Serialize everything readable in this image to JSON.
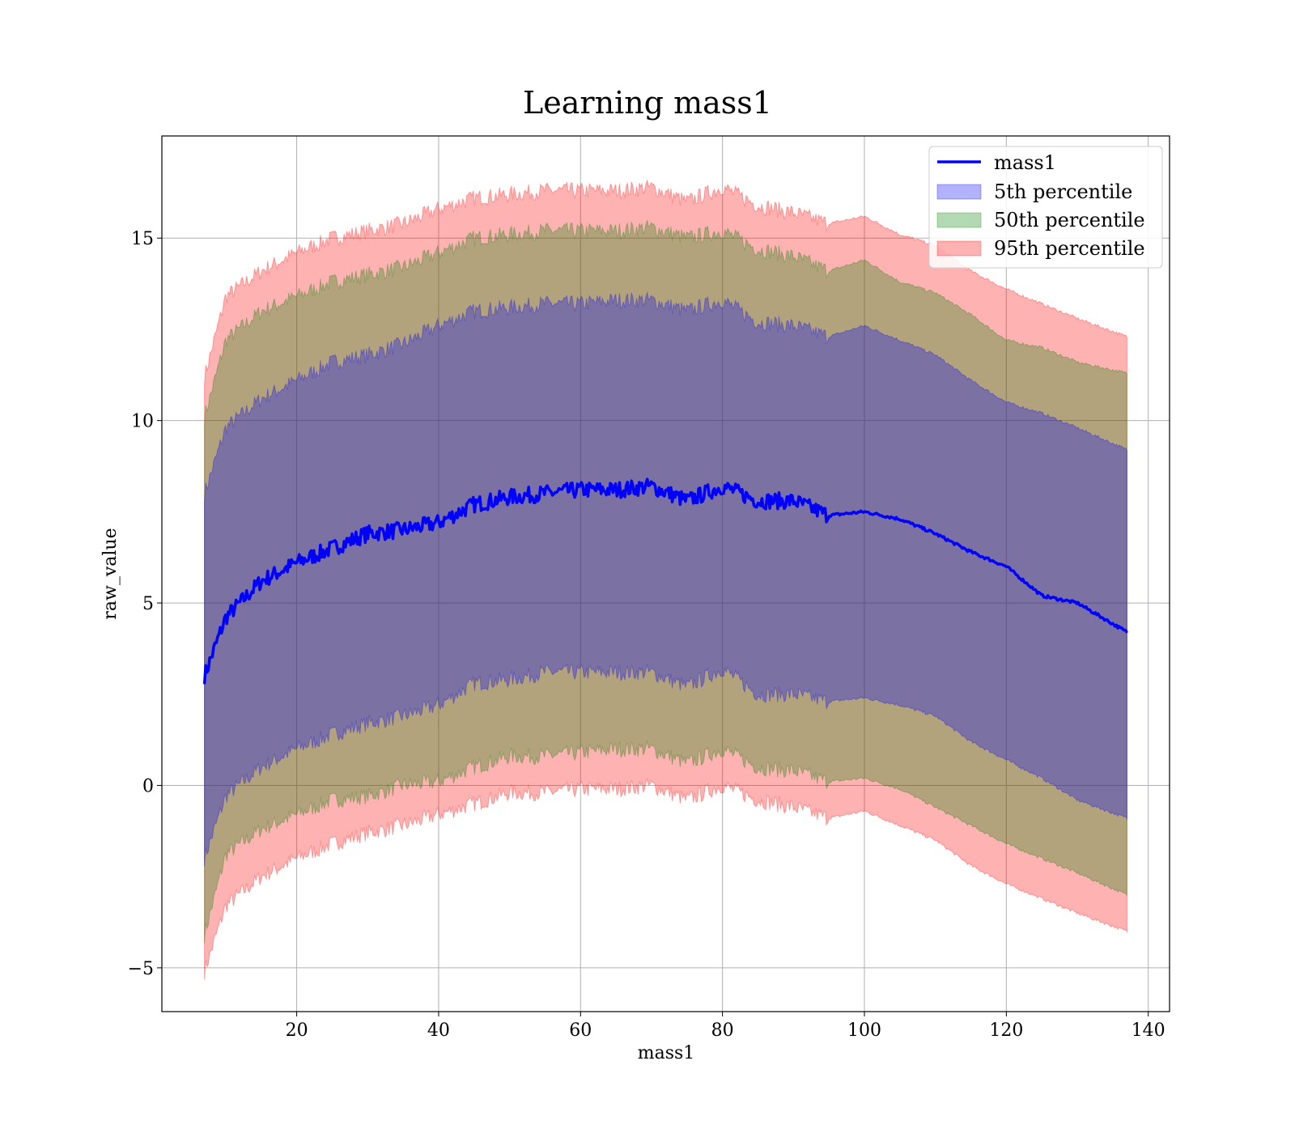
{
  "chart_data": {
    "type": "area",
    "title": "Learning mass1",
    "xlabel": "mass1",
    "ylabel": "raw_value",
    "xlim": [
      1,
      143
    ],
    "ylim": [
      -6.2,
      17.8
    ],
    "xticks": [
      20,
      40,
      60,
      80,
      100,
      120,
      140
    ],
    "yticks": [
      -5,
      0,
      5,
      10,
      15
    ],
    "ytick_labels": [
      "−5",
      "0",
      "5",
      "10",
      "15"
    ],
    "grid": true,
    "legend_position": "top-right",
    "colors": {
      "line": "#0000ff",
      "band_5th": "#0000ff",
      "band_50th": "#008000",
      "band_95th": "#ff0000"
    },
    "x": [
      7,
      10,
      15,
      20,
      25,
      30,
      35,
      40,
      45,
      50,
      55,
      60,
      65,
      70,
      75,
      80,
      85,
      90,
      95,
      100,
      105,
      110,
      115,
      120,
      125,
      130,
      137
    ],
    "series": [
      {
        "name": "mass1",
        "kind": "line",
        "values": [
          3.0,
          4.6,
          5.6,
          6.1,
          6.5,
          6.9,
          7.0,
          7.2,
          7.7,
          7.9,
          8.0,
          8.1,
          8.1,
          8.2,
          7.8,
          8.2,
          7.8,
          7.8,
          7.4,
          7.5,
          7.3,
          6.9,
          6.4,
          6.0,
          5.2,
          5.0,
          4.2
        ]
      },
      {
        "name": "5th percentile",
        "kind": "band",
        "upper": [
          8.0,
          9.8,
          10.6,
          11.1,
          11.6,
          11.8,
          12.1,
          12.6,
          13.0,
          13.1,
          13.2,
          13.2,
          13.3,
          13.3,
          13.0,
          13.3,
          12.7,
          12.6,
          12.3,
          12.6,
          12.2,
          11.8,
          11.1,
          10.5,
          10.2,
          9.8,
          9.2
        ],
        "lower": [
          -2.0,
          -0.3,
          0.5,
          1.0,
          1.4,
          1.7,
          1.9,
          2.2,
          2.8,
          2.9,
          3.1,
          3.1,
          3.1,
          3.1,
          2.7,
          3.2,
          2.5,
          2.5,
          2.3,
          2.4,
          2.2,
          1.9,
          1.2,
          0.7,
          0.2,
          -0.4,
          -0.9
        ]
      },
      {
        "name": "50th percentile",
        "kind": "band",
        "upper": [
          10.1,
          12.2,
          13.0,
          13.4,
          13.8,
          14.0,
          14.2,
          14.6,
          15.0,
          15.1,
          15.2,
          15.2,
          15.2,
          15.3,
          15.0,
          15.2,
          14.7,
          14.5,
          14.1,
          14.4,
          13.8,
          13.5,
          12.9,
          12.2,
          12.0,
          11.6,
          11.3
        ],
        "lower": [
          -4.1,
          -1.9,
          -1.2,
          -0.8,
          -0.4,
          -0.3,
          0.0,
          0.1,
          0.5,
          0.8,
          0.8,
          0.9,
          1.0,
          1.0,
          0.6,
          1.0,
          0.5,
          0.4,
          0.1,
          0.2,
          -0.1,
          -0.6,
          -1.1,
          -1.6,
          -2.0,
          -2.4,
          -3.0
        ]
      },
      {
        "name": "95th percentile",
        "kind": "band",
        "upper": [
          11.2,
          13.4,
          14.1,
          14.6,
          15.0,
          15.2,
          15.4,
          15.8,
          16.1,
          16.2,
          16.3,
          16.3,
          16.3,
          16.4,
          16.0,
          16.4,
          15.9,
          15.7,
          15.4,
          15.6,
          15.1,
          14.8,
          14.1,
          13.6,
          13.2,
          12.8,
          12.3
        ],
        "lower": [
          -5.1,
          -3.3,
          -2.5,
          -2.0,
          -1.6,
          -1.3,
          -1.1,
          -0.8,
          -0.5,
          -0.2,
          -0.2,
          -0.1,
          -0.1,
          0.0,
          -0.4,
          0.0,
          -0.4,
          -0.6,
          -0.9,
          -0.7,
          -1.1,
          -1.5,
          -2.2,
          -2.7,
          -3.1,
          -3.5,
          -4.0
        ]
      }
    ]
  }
}
